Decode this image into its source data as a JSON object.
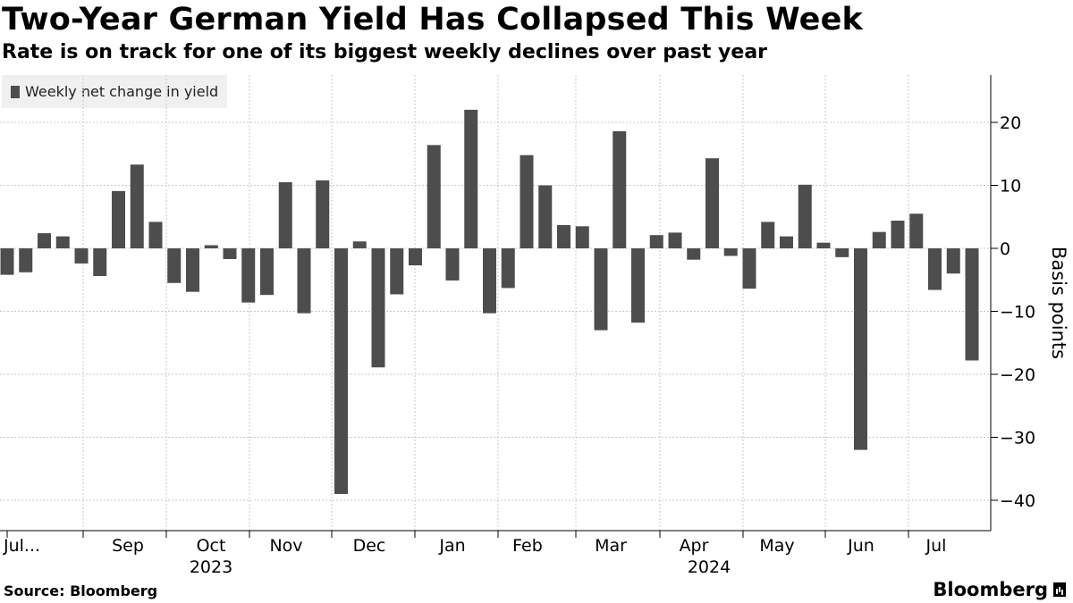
{
  "header": {
    "title": "Two-Year German Yield Has Collapsed This Week",
    "subtitle": "Rate is on track for one of its biggest weekly declines over past year"
  },
  "footer": {
    "source": "Source: Bloomberg",
    "brand": "Bloomberg"
  },
  "colors": {
    "bar": "#4d4d4d",
    "grid": "#c8c8c8",
    "legend_bg": "#f0f0f0"
  },
  "chart_data": {
    "type": "bar",
    "title": "Two-Year German Yield Has Collapsed This Week",
    "subtitle": "Rate is on track for one of its biggest weekly declines over past year",
    "legend": [
      "Weekly net change in yield"
    ],
    "legend_position": "top-left",
    "ylabel": "Basis points",
    "y_axis_side": "right",
    "ylim": [
      -45,
      27
    ],
    "yticks": [
      20,
      10,
      0,
      -10,
      -20,
      -30,
      -40
    ],
    "grid": true,
    "x_tick_labels": [
      "Jul...",
      "Sep",
      "Oct",
      "Nov",
      "Dec",
      "Jan",
      "Feb",
      "Mar",
      "Apr",
      "May",
      "Jun",
      "Jul"
    ],
    "x_year_labels": [
      "2023",
      "2024"
    ],
    "series": [
      {
        "name": "Weekly net change in yield",
        "values": [
          -4.2,
          -3.8,
          2.4,
          1.9,
          -2.4,
          -4.4,
          9.1,
          13.3,
          4.2,
          -5.5,
          -6.9,
          0.5,
          -1.7,
          -8.6,
          -7.4,
          10.5,
          -10.3,
          10.8,
          -39.0,
          1.1,
          -18.9,
          -7.3,
          -2.7,
          16.4,
          -5.1,
          22.0,
          -10.3,
          -6.3,
          14.8,
          10.0,
          3.7,
          3.5,
          -13.0,
          18.6,
          -11.8,
          2.1,
          2.5,
          -1.8,
          14.3,
          -1.2,
          -6.4,
          4.2,
          1.9,
          10.1,
          0.9,
          -1.4,
          -32.0,
          2.6,
          4.4,
          5.5,
          -6.6,
          -4.0,
          -17.8
        ]
      }
    ]
  }
}
